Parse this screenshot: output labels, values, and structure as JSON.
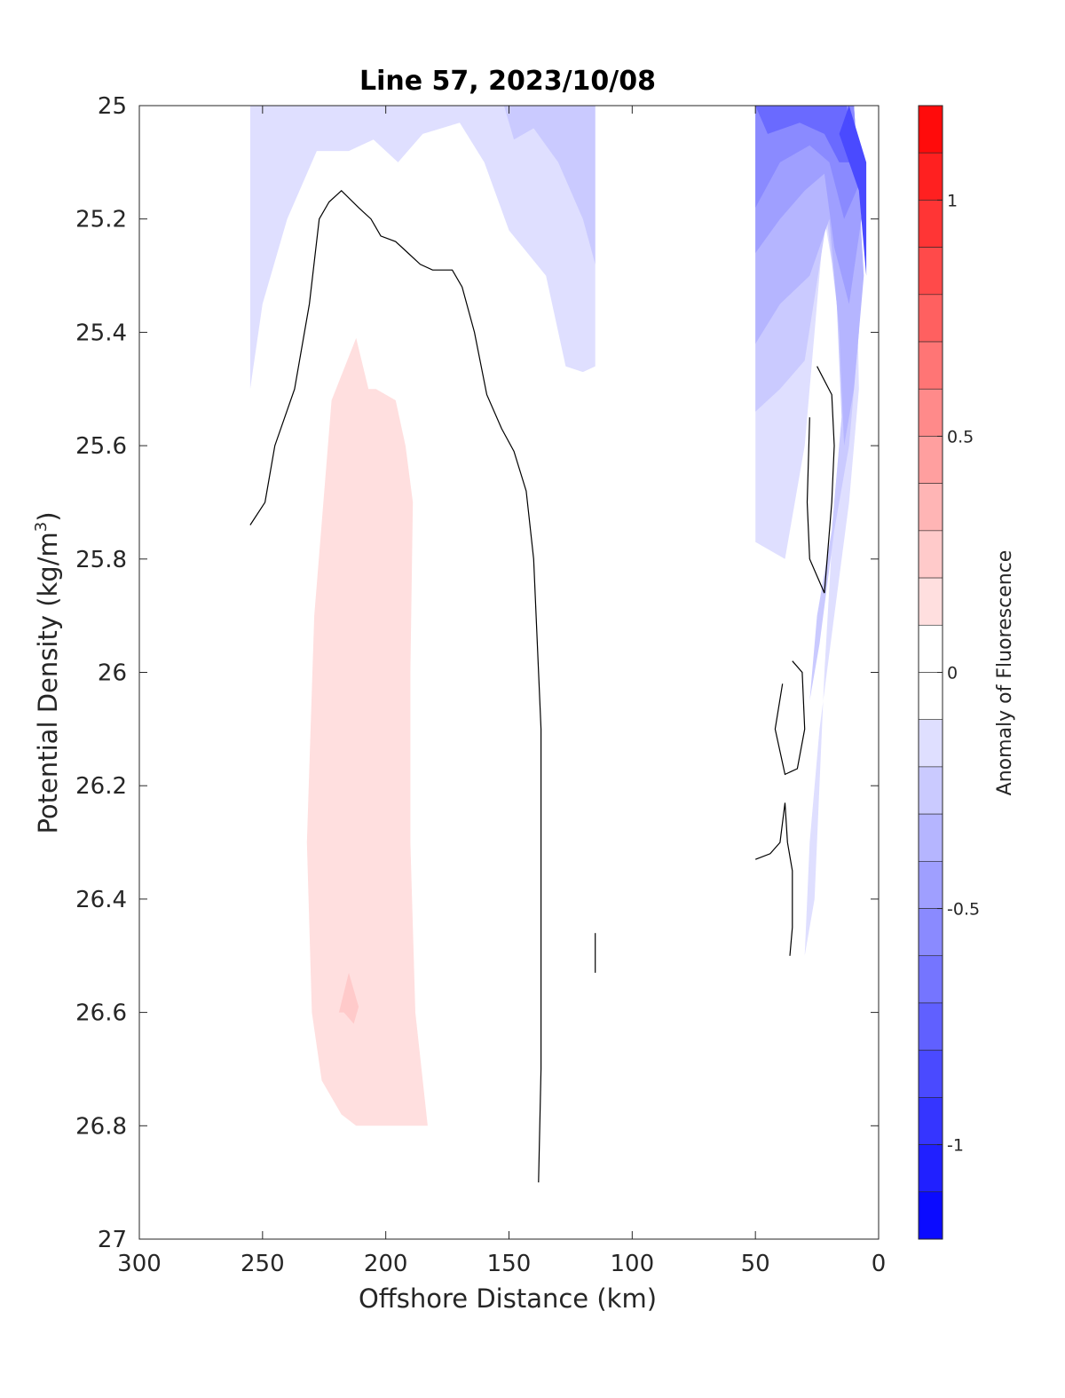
{
  "chart_data": {
    "type": "contour",
    "title": "Line 57, 2023/10/08",
    "xlabel": "Offshore Distance (km)",
    "ylabel_main": "Potential Density (kg/m",
    "ylabel_sup": "3",
    "ylabel_end": ")",
    "xlim": [
      0,
      300
    ],
    "x_reversed": true,
    "ylim": [
      25,
      27
    ],
    "y_reversed": true,
    "xticks": [
      300,
      250,
      200,
      150,
      100,
      50,
      0
    ],
    "xtick_labels": [
      "300",
      "250",
      "200",
      "150",
      "100",
      "50",
      "0"
    ],
    "yticks": [
      25,
      25.2,
      25.4,
      25.6,
      25.8,
      26,
      26.2,
      26.4,
      26.6,
      26.8,
      27
    ],
    "ytick_labels": [
      "25",
      "25.2",
      "25.4",
      "25.6",
      "25.8",
      "26",
      "26.2",
      "26.4",
      "26.6",
      "26.8",
      "27"
    ],
    "colorbar": {
      "label": "Anomaly of Fluorescence",
      "range": [
        -1.2,
        1.2
      ],
      "level_step": 0.1,
      "ticks": [
        1,
        0.5,
        0,
        -0.5,
        -1
      ],
      "tick_labels": [
        "1",
        "0.5",
        "0",
        "-0.5",
        "-1"
      ],
      "negative_color": "#0000ff",
      "positive_color": "#ff0000",
      "neutral_color": "#ffffff"
    },
    "zero_contour_color": "#000000",
    "filled_regions": [
      {
        "level": -0.15,
        "points": [
          [
            255,
            25.0
          ],
          [
            115,
            25.0
          ],
          [
            115,
            25.46
          ],
          [
            120,
            25.47
          ],
          [
            127,
            25.46
          ],
          [
            135,
            25.3
          ],
          [
            150,
            25.22
          ],
          [
            160,
            25.1
          ],
          [
            170,
            25.03
          ],
          [
            185,
            25.05
          ],
          [
            195,
            25.1
          ],
          [
            205,
            25.06
          ],
          [
            215,
            25.08
          ],
          [
            228,
            25.08
          ],
          [
            240,
            25.2
          ],
          [
            250,
            25.35
          ],
          [
            255,
            25.5
          ]
        ]
      },
      {
        "level": -0.25,
        "points": [
          [
            152,
            25.0
          ],
          [
            115,
            25.0
          ],
          [
            115,
            25.28
          ],
          [
            120,
            25.2
          ],
          [
            130,
            25.1
          ],
          [
            140,
            25.04
          ],
          [
            148,
            25.06
          ]
        ]
      },
      {
        "level": 0.15,
        "points": [
          [
            212,
            25.41
          ],
          [
            222,
            25.52
          ],
          [
            229,
            25.9
          ],
          [
            232,
            26.3
          ],
          [
            230,
            26.6
          ],
          [
            226,
            26.72
          ],
          [
            218,
            26.78
          ],
          [
            212,
            26.8
          ],
          [
            183,
            26.8
          ],
          [
            188,
            26.6
          ],
          [
            190,
            26.3
          ],
          [
            190,
            26.0
          ],
          [
            189,
            25.7
          ],
          [
            192,
            25.6
          ],
          [
            196,
            25.52
          ],
          [
            204,
            25.5
          ],
          [
            207,
            25.5
          ]
        ]
      },
      {
        "level": 0.25,
        "points": [
          [
            215,
            26.53
          ],
          [
            211,
            26.59
          ],
          [
            213,
            26.62
          ],
          [
            217,
            26.6
          ],
          [
            219,
            26.6
          ]
        ]
      },
      {
        "level": -0.15,
        "points": [
          [
            50,
            25.0
          ],
          [
            10,
            25.0
          ],
          [
            8,
            25.5
          ],
          [
            12,
            25.7
          ],
          [
            18,
            25.9
          ],
          [
            24,
            26.1
          ],
          [
            28,
            26.3
          ],
          [
            30,
            26.5
          ],
          [
            26,
            26.4
          ],
          [
            22,
            26.0
          ],
          [
            18,
            25.7
          ],
          [
            14,
            25.5
          ],
          [
            18,
            25.3
          ],
          [
            22,
            25.2
          ],
          [
            30,
            25.6
          ],
          [
            38,
            25.8
          ],
          [
            50,
            25.77
          ]
        ]
      },
      {
        "level": -0.25,
        "points": [
          [
            50,
            25.0
          ],
          [
            10,
            25.0
          ],
          [
            8,
            25.4
          ],
          [
            12,
            25.6
          ],
          [
            18,
            25.75
          ],
          [
            24,
            25.95
          ],
          [
            28,
            26.05
          ],
          [
            25,
            25.9
          ],
          [
            19,
            25.75
          ],
          [
            15,
            25.55
          ],
          [
            17,
            25.35
          ],
          [
            21,
            25.2
          ],
          [
            30,
            25.45
          ],
          [
            40,
            25.5
          ],
          [
            50,
            25.54
          ]
        ]
      },
      {
        "level": -0.35,
        "points": [
          [
            50,
            25.0
          ],
          [
            10,
            25.0
          ],
          [
            6,
            25.3
          ],
          [
            10,
            25.5
          ],
          [
            14,
            25.6
          ],
          [
            16,
            25.4
          ],
          [
            20,
            25.2
          ],
          [
            28,
            25.3
          ],
          [
            40,
            25.35
          ],
          [
            50,
            25.42
          ]
        ]
      },
      {
        "level": -0.45,
        "points": [
          [
            50,
            25.0
          ],
          [
            10,
            25.0
          ],
          [
            7,
            25.2
          ],
          [
            12,
            25.35
          ],
          [
            18,
            25.25
          ],
          [
            22,
            25.12
          ],
          [
            30,
            25.15
          ],
          [
            40,
            25.2
          ],
          [
            50,
            25.26
          ]
        ]
      },
      {
        "level": -0.55,
        "points": [
          [
            50,
            25.0
          ],
          [
            10,
            25.0
          ],
          [
            8,
            25.14
          ],
          [
            14,
            25.2
          ],
          [
            20,
            25.1
          ],
          [
            28,
            25.07
          ],
          [
            40,
            25.1
          ],
          [
            50,
            25.18
          ]
        ]
      },
      {
        "level": -0.7,
        "points": [
          [
            50,
            25.0
          ],
          [
            13,
            25.0
          ],
          [
            10,
            25.1
          ],
          [
            16,
            25.1
          ],
          [
            22,
            25.05
          ],
          [
            32,
            25.03
          ],
          [
            45,
            25.05
          ]
        ]
      },
      {
        "level": -0.85,
        "points": [
          [
            12,
            25.0
          ],
          [
            5,
            25.1
          ],
          [
            5,
            25.3
          ],
          [
            8,
            25.15
          ],
          [
            16,
            25.05
          ]
        ]
      },
      {
        "level": -1.05,
        "points": [
          [
            15,
            25.0
          ],
          [
            5,
            25.1
          ],
          [
            8,
            25.07
          ]
        ]
      }
    ],
    "zero_contours": [
      {
        "points": [
          [
            255,
            25.74
          ],
          [
            249,
            25.7
          ],
          [
            245,
            25.6
          ],
          [
            237,
            25.5
          ],
          [
            231,
            25.35
          ],
          [
            227,
            25.2
          ],
          [
            223,
            25.17
          ],
          [
            218,
            25.15
          ],
          [
            211,
            25.18
          ],
          [
            206,
            25.2
          ],
          [
            202,
            25.23
          ],
          [
            196,
            25.24
          ],
          [
            191,
            25.26
          ],
          [
            186,
            25.28
          ],
          [
            181,
            25.29
          ],
          [
            173,
            25.29
          ],
          [
            169,
            25.32
          ],
          [
            164,
            25.4
          ],
          [
            159,
            25.51
          ],
          [
            153,
            25.57
          ],
          [
            148,
            25.61
          ],
          [
            143,
            25.68
          ],
          [
            140,
            25.8
          ],
          [
            137,
            26.1
          ],
          [
            137,
            26.4
          ],
          [
            137,
            26.7
          ],
          [
            138,
            26.9
          ]
        ]
      },
      {
        "points": [
          [
            25,
            25.46
          ],
          [
            19,
            25.51
          ],
          [
            18,
            25.6
          ],
          [
            19,
            25.7
          ],
          [
            22,
            25.86
          ],
          [
            28,
            25.8
          ],
          [
            29,
            25.7
          ],
          [
            28,
            25.55
          ]
        ]
      },
      {
        "points": [
          [
            35,
            25.98
          ],
          [
            31,
            26.0
          ],
          [
            30,
            26.1
          ],
          [
            33,
            26.17
          ],
          [
            38,
            26.18
          ],
          [
            42,
            26.1
          ],
          [
            39,
            26.02
          ]
        ]
      },
      {
        "points": [
          [
            50,
            26.33
          ],
          [
            44,
            26.32
          ],
          [
            40,
            26.3
          ],
          [
            38,
            26.23
          ],
          [
            37,
            26.3
          ],
          [
            35,
            26.35
          ],
          [
            35,
            26.45
          ],
          [
            36,
            26.5
          ]
        ]
      },
      {
        "points": [
          [
            115,
            26.46
          ],
          [
            115,
            26.53
          ]
        ]
      }
    ]
  }
}
